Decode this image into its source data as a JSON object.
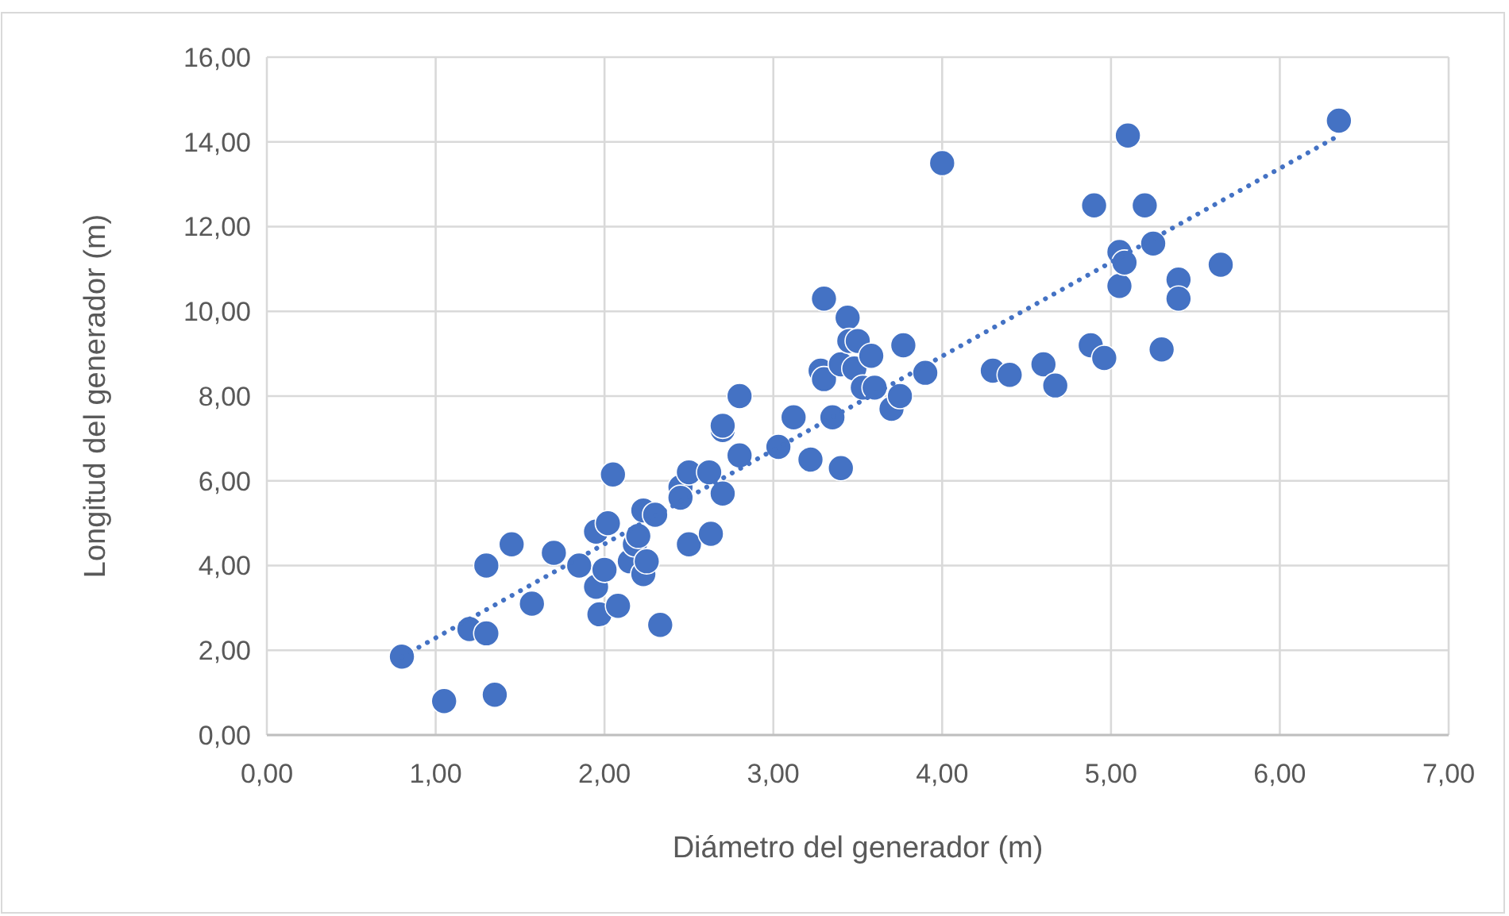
{
  "chart_data": {
    "type": "scatter",
    "xlabel": "Diámetro del generador (m)",
    "ylabel": "Longitud del generador (m)",
    "xlim": [
      0,
      7
    ],
    "ylim": [
      0,
      16
    ],
    "xticks": [
      {
        "value": 0,
        "label": "0,00"
      },
      {
        "value": 1,
        "label": "1,00"
      },
      {
        "value": 2,
        "label": "2,00"
      },
      {
        "value": 3,
        "label": "3,00"
      },
      {
        "value": 4,
        "label": "4,00"
      },
      {
        "value": 5,
        "label": "5,00"
      },
      {
        "value": 6,
        "label": "6,00"
      },
      {
        "value": 7,
        "label": "7,00"
      }
    ],
    "yticks": [
      {
        "value": 0,
        "label": "0,00"
      },
      {
        "value": 2,
        "label": "2,00"
      },
      {
        "value": 4,
        "label": "4,00"
      },
      {
        "value": 6,
        "label": "6,00"
      },
      {
        "value": 8,
        "label": "8,00"
      },
      {
        "value": 10,
        "label": "10,00"
      },
      {
        "value": 12,
        "label": "12,00"
      },
      {
        "value": 14,
        "label": "14,00"
      },
      {
        "value": 16,
        "label": "16,00"
      }
    ],
    "grid": true,
    "marker": "circle",
    "series": [
      {
        "color": "#4472c4",
        "x": [
          0.8,
          1.05,
          1.35,
          1.2,
          1.3,
          1.3,
          1.45,
          1.57,
          1.7,
          1.85,
          1.95,
          1.95,
          1.97,
          2.0,
          2.02,
          2.05,
          2.08,
          2.15,
          2.18,
          2.2,
          2.23,
          2.23,
          2.25,
          2.3,
          2.33,
          2.45,
          2.45,
          2.5,
          2.5,
          2.62,
          2.63,
          2.7,
          2.7,
          2.7,
          2.8,
          2.8,
          3.03,
          3.12,
          3.22,
          3.28,
          3.3,
          3.3,
          3.35,
          3.4,
          3.4,
          3.44,
          3.45,
          3.48,
          3.5,
          3.53,
          3.58,
          3.6,
          3.7,
          3.75,
          3.77,
          3.9,
          4.0,
          4.3,
          4.4,
          4.6,
          4.67,
          4.88,
          4.9,
          4.96,
          5.05,
          5.05,
          5.08,
          5.1,
          5.2,
          5.25,
          5.3,
          5.4,
          5.4,
          5.65,
          6.35
        ],
        "values": [
          1.85,
          0.8,
          0.95,
          2.5,
          2.4,
          4.0,
          4.5,
          3.1,
          4.3,
          4.0,
          3.5,
          4.8,
          2.85,
          3.9,
          5.0,
          6.15,
          3.05,
          4.1,
          4.5,
          4.7,
          5.3,
          3.8,
          4.1,
          5.2,
          2.6,
          5.85,
          5.6,
          6.2,
          4.5,
          6.2,
          4.75,
          7.2,
          7.3,
          5.7,
          8.0,
          6.6,
          6.8,
          7.5,
          6.5,
          8.6,
          8.4,
          10.3,
          7.5,
          8.75,
          6.3,
          9.85,
          9.3,
          8.65,
          9.3,
          8.2,
          8.95,
          8.2,
          7.7,
          8.0,
          9.2,
          8.55,
          13.5,
          8.6,
          8.5,
          8.75,
          8.25,
          9.2,
          12.5,
          8.9,
          11.4,
          10.6,
          11.15,
          14.15,
          12.5,
          11.6,
          9.1,
          10.75,
          10.3,
          11.1,
          14.5
        ]
      },
      {
        "type": "line",
        "color": "#4472c4",
        "line_style": "dotted",
        "marker": "none",
        "x": [
          0.8,
          6.35
        ],
        "values": [
          1.85,
          14.15
        ]
      }
    ]
  }
}
